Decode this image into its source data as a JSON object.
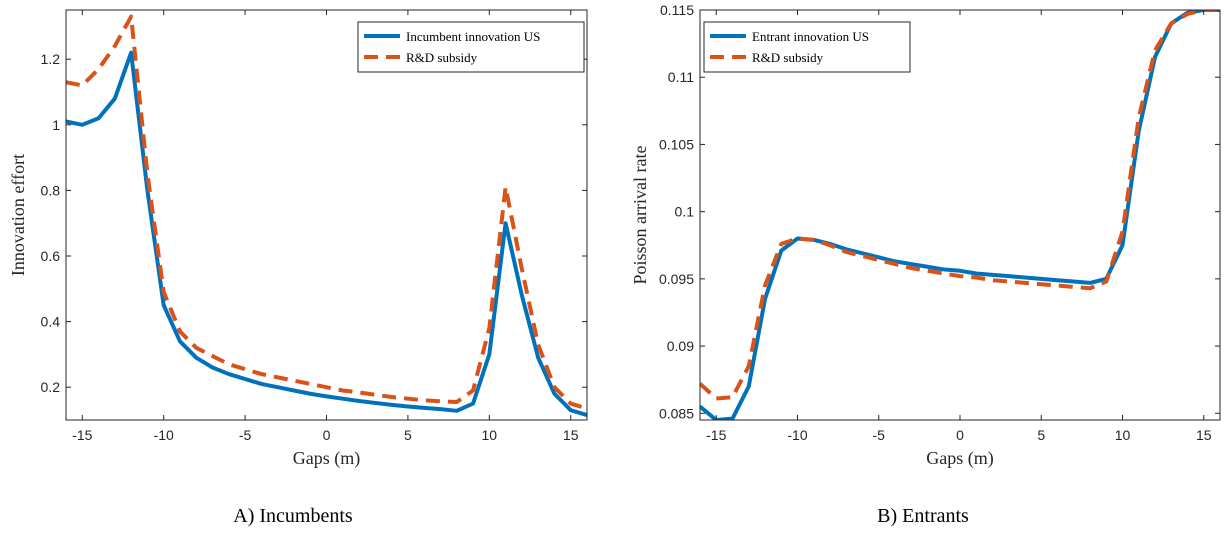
{
  "colors": {
    "series1": "#0072BD",
    "series2": "#D95319",
    "axis": "#262626"
  },
  "captions": [
    "A) Incumbents",
    "B) Entrants"
  ],
  "chart_data": [
    {
      "type": "line",
      "caption": "A) Incumbents",
      "xlabel": "Gaps (m)",
      "ylabel": "Innovation effort",
      "xlim": [
        -16,
        16
      ],
      "ylim": [
        0.1,
        1.35
      ],
      "xticks": [
        -15,
        -10,
        -5,
        0,
        5,
        10,
        15
      ],
      "yticks": [
        0.2,
        0.4,
        0.6,
        0.8,
        1,
        1.2
      ],
      "ytick_labels": [
        "0.2",
        "0.4",
        "0.6",
        "0.8",
        "1",
        "1.2"
      ],
      "grid": false,
      "legend_position": "top-right",
      "x": [
        -16,
        -15,
        -14,
        -13,
        -12,
        -11,
        -10,
        -9,
        -8,
        -7,
        -6,
        -5,
        -4,
        -3,
        -2,
        -1,
        0,
        1,
        2,
        3,
        4,
        5,
        6,
        7,
        8,
        9,
        10,
        11,
        12,
        13,
        14,
        15,
        16
      ],
      "series": [
        {
          "name": "Incumbent innovation US",
          "style": "solid",
          "values": [
            1.01,
            1.0,
            1.02,
            1.08,
            1.22,
            0.8,
            0.45,
            0.34,
            0.29,
            0.26,
            0.24,
            0.225,
            0.21,
            0.2,
            0.19,
            0.18,
            0.172,
            0.165,
            0.158,
            0.152,
            0.146,
            0.141,
            0.137,
            0.133,
            0.128,
            0.15,
            0.3,
            0.7,
            0.48,
            0.29,
            0.18,
            0.13,
            0.115
          ]
        },
        {
          "name": "R&D subsidy",
          "style": "dashed",
          "values": [
            1.13,
            1.12,
            1.17,
            1.24,
            1.33,
            0.85,
            0.49,
            0.37,
            0.32,
            0.295,
            0.27,
            0.255,
            0.24,
            0.23,
            0.22,
            0.21,
            0.2,
            0.19,
            0.184,
            0.177,
            0.17,
            0.165,
            0.16,
            0.157,
            0.155,
            0.19,
            0.38,
            0.81,
            0.56,
            0.33,
            0.2,
            0.15,
            0.135
          ]
        }
      ]
    },
    {
      "type": "line",
      "caption": "B) Entrants",
      "xlabel": "Gaps (m)",
      "ylabel": "Poisson arrival rate",
      "xlim": [
        -16,
        16
      ],
      "ylim": [
        0.0845,
        0.115
      ],
      "xticks": [
        -15,
        -10,
        -5,
        0,
        5,
        10,
        15
      ],
      "yticks": [
        0.085,
        0.09,
        0.095,
        0.1,
        0.105,
        0.11,
        0.115
      ],
      "ytick_labels": [
        "0.085",
        "0.09",
        "0.095",
        "0.1",
        "0.105",
        "0.11",
        "0.115"
      ],
      "grid": false,
      "legend_position": "top-left",
      "x": [
        -16,
        -15,
        -14,
        -13,
        -12,
        -11,
        -10,
        -9,
        -8,
        -7,
        -6,
        -5,
        -4,
        -3,
        -2,
        -1,
        0,
        1,
        2,
        3,
        4,
        5,
        6,
        7,
        8,
        9,
        10,
        11,
        12,
        13,
        14,
        15,
        16
      ],
      "series": [
        {
          "name": "Entrant innovation US",
          "style": "solid",
          "values": [
            0.0855,
            0.0845,
            0.0846,
            0.087,
            0.0935,
            0.0971,
            0.098,
            0.0979,
            0.0976,
            0.0972,
            0.0969,
            0.0966,
            0.0963,
            0.0961,
            0.0959,
            0.0957,
            0.0956,
            0.0954,
            0.0953,
            0.0952,
            0.0951,
            0.095,
            0.0949,
            0.0948,
            0.0947,
            0.095,
            0.0975,
            0.106,
            0.1115,
            0.114,
            0.1148,
            0.115,
            0.115
          ]
        },
        {
          "name": "R&D subsidy",
          "style": "dashed",
          "values": [
            0.0872,
            0.0861,
            0.0862,
            0.0885,
            0.0945,
            0.0976,
            0.098,
            0.0979,
            0.0975,
            0.097,
            0.0967,
            0.0964,
            0.0961,
            0.0958,
            0.0956,
            0.0954,
            0.0952,
            0.0951,
            0.0949,
            0.0948,
            0.0947,
            0.0946,
            0.0945,
            0.0944,
            0.0943,
            0.0948,
            0.0985,
            0.107,
            0.112,
            0.114,
            0.1147,
            0.115,
            0.115
          ]
        }
      ]
    }
  ]
}
